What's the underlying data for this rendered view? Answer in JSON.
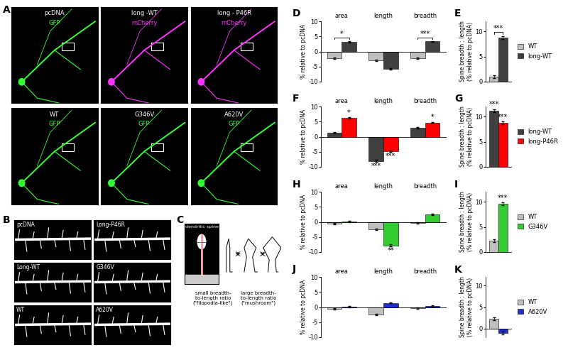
{
  "image_panels": {
    "A": {
      "panel": "A",
      "items": [
        {
          "name": "pcDNA",
          "channel": "GFP",
          "color": "#33ff33"
        },
        {
          "name": "long -WT",
          "channel": "mCherry",
          "color": "#ff33ff"
        },
        {
          "name": "long - P46R",
          "channel": "mCherry",
          "color": "#ff33ff"
        },
        {
          "name": "WT",
          "channel": "GFP",
          "color": "#33ff33"
        },
        {
          "name": "G346V",
          "channel": "GFP",
          "color": "#33ff33"
        },
        {
          "name": "A620V",
          "channel": "GFP",
          "color": "#33ff33"
        }
      ]
    },
    "B": {
      "panel": "B",
      "labels": [
        "pcDNA",
        "Long-P46R",
        "Long-WT",
        "G346V",
        "WT",
        "A620V"
      ]
    },
    "C": {
      "panel": "C",
      "spine_label": "dendritic spine",
      "left_text": "small breadth-\nto-length ratio\n(\"filopodia-like\")",
      "right_text": "large breadth-\nto-length ratio\n(\"mushroom\")"
    }
  },
  "chart_data": [
    {
      "panel": "D",
      "type": "bar",
      "y_label": "% relative to pcDNA",
      "categories": [
        "area",
        "length",
        "breadth"
      ],
      "ylim": [
        -10,
        10
      ],
      "yticks": [
        -10,
        -5,
        0,
        5,
        10
      ],
      "series": [
        {
          "name": "WT",
          "color": "#bfbfbf",
          "values": [
            -2.2,
            -3.0,
            -2.2
          ],
          "errors": [
            0.2,
            0.2,
            0.2
          ]
        },
        {
          "name": "long-WT",
          "color": "#404040",
          "values": [
            3.2,
            -5.8,
            3.3
          ],
          "errors": [
            0.2,
            0.3,
            0.2
          ]
        }
      ],
      "annotations": [
        {
          "category": "area",
          "series": [
            "WT",
            "long-WT"
          ],
          "text": "*"
        },
        {
          "category": "breadth",
          "series": [
            "WT",
            "long-WT"
          ],
          "text": "***"
        }
      ]
    },
    {
      "panel": "E",
      "type": "bar",
      "y_label": "Spine breadth : length\n(% relative to pcDNA)",
      "categories": [
        null
      ],
      "ylim": [
        0,
        12
      ],
      "yticks": [
        0,
        5,
        10
      ],
      "legend": "center left",
      "series": [
        {
          "name": "WT",
          "color": "#bfbfbf",
          "values": [
            1.0
          ],
          "errors": [
            0.3
          ]
        },
        {
          "name": "long-WT",
          "color": "#404040",
          "values": [
            8.8
          ],
          "errors": [
            0.3
          ]
        }
      ],
      "annotations": [
        {
          "category": null,
          "series": [
            "WT",
            "long-WT"
          ],
          "text": "***"
        }
      ]
    },
    {
      "panel": "F",
      "type": "bar",
      "y_label": "% relative to pcDNA",
      "categories": [
        "area",
        "length",
        "breadth"
      ],
      "ylim": [
        -10,
        10
      ],
      "yticks": [
        -10,
        -5,
        0,
        5,
        10
      ],
      "series": [
        {
          "name": "long-WT",
          "color": "#404040",
          "values": [
            1.3,
            -8.0,
            3.0
          ],
          "errors": [
            0.2,
            0.3,
            0.2
          ]
        },
        {
          "name": "long-P46R",
          "color": "#ff0000",
          "values": [
            6.2,
            -4.8,
            4.7
          ],
          "errors": [
            0.2,
            0.3,
            0.2
          ]
        }
      ],
      "annotations": [
        {
          "category": "area",
          "series": "long-P46R",
          "text": "*"
        },
        {
          "category": "length",
          "series": "long-WT",
          "text": "***"
        },
        {
          "category": "length",
          "series": "long-P46R",
          "text": "***"
        },
        {
          "category": "breadth",
          "series": "long-P46R",
          "text": "*"
        }
      ]
    },
    {
      "panel": "G",
      "type": "bar",
      "y_label": "Spine breadth : length\n(% relative to pcDNA)",
      "categories": [
        null
      ],
      "ylim": [
        0,
        12
      ],
      "yticks": [
        0,
        5,
        10
      ],
      "legend": "center left",
      "series": [
        {
          "name": "long-WT",
          "color": "#404040",
          "values": [
            11.2
          ],
          "errors": [
            0.3
          ]
        },
        {
          "name": "long-P46R",
          "color": "#ff0000",
          "values": [
            8.7
          ],
          "errors": [
            0.3
          ]
        }
      ],
      "annotations": [
        {
          "category": null,
          "series": "long-WT",
          "text": "***"
        },
        {
          "category": null,
          "series": "long-P46R",
          "text": "***"
        }
      ]
    },
    {
      "panel": "H",
      "type": "bar",
      "y_label": "% relative to pcDNA",
      "categories": [
        "area",
        "length",
        "breadth"
      ],
      "ylim": [
        -10,
        10
      ],
      "yticks": [
        -10,
        -5,
        0,
        5,
        10
      ],
      "series": [
        {
          "name": "WT",
          "color": "#bfbfbf",
          "values": [
            -0.6,
            -2.4,
            -0.4
          ],
          "errors": [
            0.2,
            0.2,
            0.2
          ]
        },
        {
          "name": "G346V",
          "color": "#33cc33",
          "values": [
            0.1,
            -7.8,
            2.4
          ],
          "errors": [
            0.2,
            0.3,
            0.2
          ]
        }
      ],
      "annotations": [
        {
          "category": "length",
          "series": "G346V",
          "text": "**"
        }
      ]
    },
    {
      "panel": "I",
      "type": "bar",
      "y_label": "Spine breadth : length\n(% relative to pcDNA)",
      "categories": [
        null
      ],
      "ylim": [
        0,
        12
      ],
      "yticks": [
        0,
        5,
        10
      ],
      "legend": "center left",
      "series": [
        {
          "name": "WT",
          "color": "#bfbfbf",
          "values": [
            2.3
          ],
          "errors": [
            0.3
          ]
        },
        {
          "name": "G346V",
          "color": "#33cc33",
          "values": [
            9.6
          ],
          "errors": [
            0.3
          ]
        }
      ],
      "annotations": [
        {
          "category": null,
          "series": "G346V",
          "text": "***"
        }
      ]
    },
    {
      "panel": "J",
      "type": "bar",
      "y_label": "% relative to pcDNA",
      "categories": [
        "area",
        "length",
        "breadth"
      ],
      "ylim": [
        -10,
        10
      ],
      "yticks": [
        -10,
        -5,
        0,
        5,
        10
      ],
      "series": [
        {
          "name": "WT",
          "color": "#bfbfbf",
          "values": [
            -0.6,
            -2.4,
            -0.3
          ],
          "errors": [
            0.2,
            0.2,
            0.2
          ]
        },
        {
          "name": "A620V",
          "color": "#1f2fcc",
          "values": [
            0.1,
            1.4,
            0.4
          ],
          "errors": [
            0.2,
            0.2,
            0.2
          ]
        }
      ],
      "annotations": []
    },
    {
      "panel": "K",
      "type": "bar",
      "y_label": "Spine breadth : length\n(% relative to pcDNA)",
      "categories": [
        null
      ],
      "ylim": [
        -2,
        12
      ],
      "yticks": [
        0,
        5,
        10
      ],
      "legend": "center left",
      "series": [
        {
          "name": "WT",
          "color": "#bfbfbf",
          "values": [
            2.3
          ],
          "errors": [
            0.3
          ]
        },
        {
          "name": "A620V",
          "color": "#1f2fcc",
          "values": [
            -1.0
          ],
          "errors": [
            0.3
          ]
        }
      ],
      "annotations": []
    }
  ]
}
